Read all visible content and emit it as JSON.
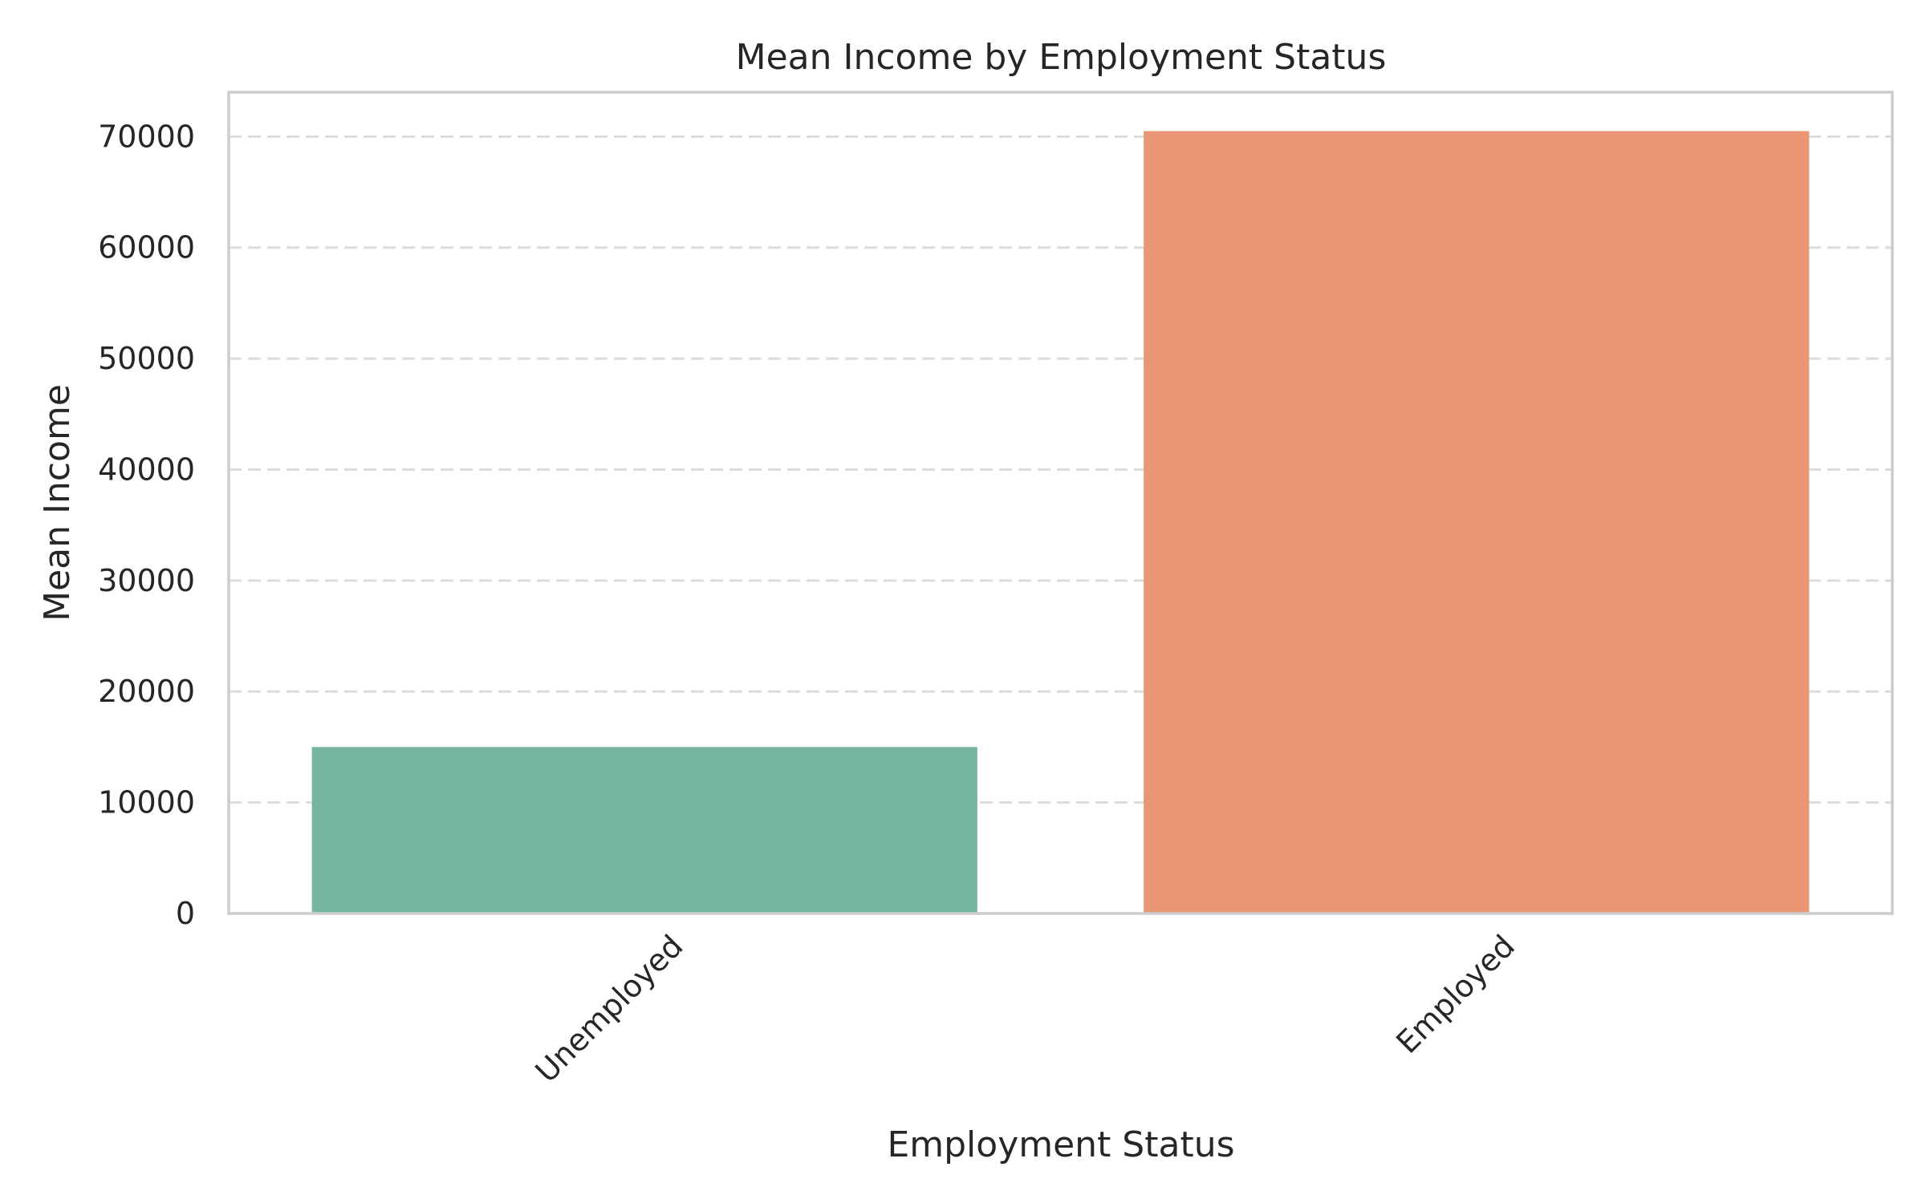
{
  "chart_data": {
    "type": "bar",
    "title": "Mean Income by Employment Status",
    "xlabel": "Employment Status",
    "ylabel": "Mean Income",
    "categories": [
      "Unemployed",
      "Employed"
    ],
    "values": [
      15000,
      70500
    ],
    "colors": [
      "#76b6a1",
      "#e89674"
    ],
    "ylim": [
      0,
      74000
    ],
    "yticks": [
      0,
      10000,
      20000,
      30000,
      40000,
      50000,
      60000,
      70000
    ],
    "grid": "y-dashed",
    "legend": "none"
  }
}
